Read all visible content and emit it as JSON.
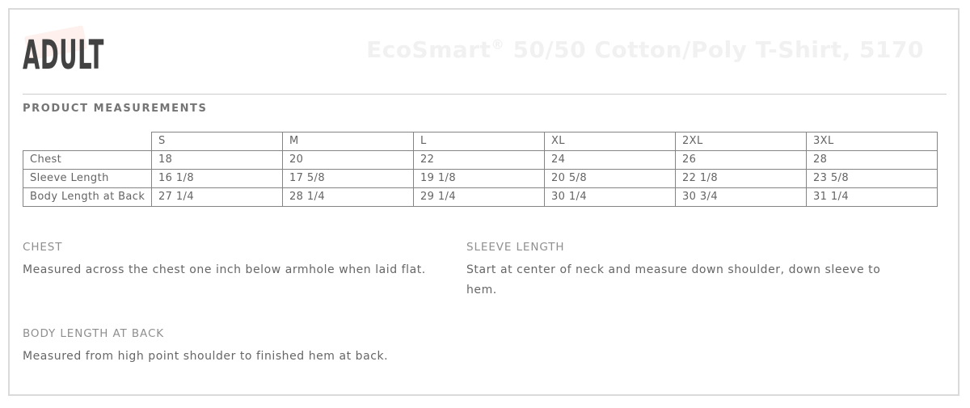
{
  "page": {
    "section_title": "ADULT",
    "subheading": "PRODUCT MEASUREMENTS",
    "watermark": {
      "brand": "EcoSmart",
      "registered_mark": "®",
      "rest": " 50/50 Cotton/Poly T-Shirt, 5170"
    },
    "colors": {
      "heading_text": "#424242",
      "watermark_text": "#f1f1f1",
      "logo_watermark_pink": "#fdf0ed",
      "table_border": "#848484",
      "body_text": "#666666",
      "panel_border": "#dadada"
    }
  },
  "measurements_table": {
    "sizes": [
      "S",
      "M",
      "L",
      "XL",
      "2XL",
      "3XL"
    ],
    "rows": [
      {
        "label": "Chest",
        "values": [
          "18",
          "20",
          "22",
          "24",
          "26",
          "28"
        ]
      },
      {
        "label": "Sleeve Length",
        "values": [
          "16 1/8",
          "17 5/8",
          "19 1/8",
          "20 5/8",
          "22 1/8",
          "23 5/8"
        ]
      },
      {
        "label": "Body Length at Back",
        "values": [
          "27 1/4",
          "28 1/4",
          "29 1/4",
          "30 1/4",
          "30 3/4",
          "31 1/4"
        ]
      }
    ]
  },
  "definitions": [
    {
      "term": "CHEST",
      "description": "Measured across the chest one inch below armhole when laid flat."
    },
    {
      "term": "SLEEVE LENGTH",
      "description": "Start at center of neck and measure down shoulder, down sleeve to hem."
    },
    {
      "term": "BODY LENGTH AT BACK",
      "description": "Measured from high point shoulder to finished hem at back."
    }
  ]
}
